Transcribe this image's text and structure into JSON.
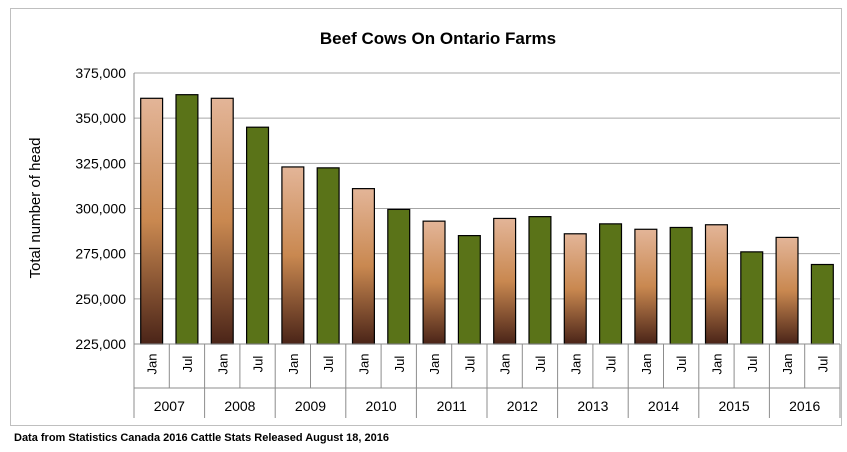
{
  "chart_data": {
    "type": "bar",
    "title": "Beef Cows On Ontario Farms",
    "ylabel": "Total number of head",
    "xlabel": "",
    "ylim": [
      225000,
      375000
    ],
    "y_ticks": [
      225000,
      250000,
      275000,
      300000,
      325000,
      350000,
      375000
    ],
    "y_tick_labels": [
      "225,000",
      "250,000",
      "275,000",
      "300,000",
      "325,000",
      "350,000",
      "375,000"
    ],
    "grid": true,
    "legend": "none",
    "categories": [
      {
        "year": "2007",
        "month": "Jan"
      },
      {
        "year": "2007",
        "month": "Jul"
      },
      {
        "year": "2008",
        "month": "Jan"
      },
      {
        "year": "2008",
        "month": "Jul"
      },
      {
        "year": "2009",
        "month": "Jan"
      },
      {
        "year": "2009",
        "month": "Jul"
      },
      {
        "year": "2010",
        "month": "Jan"
      },
      {
        "year": "2010",
        "month": "Jul"
      },
      {
        "year": "2011",
        "month": "Jan"
      },
      {
        "year": "2011",
        "month": "Jul"
      },
      {
        "year": "2012",
        "month": "Jan"
      },
      {
        "year": "2012",
        "month": "Jul"
      },
      {
        "year": "2013",
        "month": "Jan"
      },
      {
        "year": "2013",
        "month": "Jul"
      },
      {
        "year": "2014",
        "month": "Jan"
      },
      {
        "year": "2014",
        "month": "Jul"
      },
      {
        "year": "2015",
        "month": "Jan"
      },
      {
        "year": "2015",
        "month": "Jul"
      },
      {
        "year": "2016",
        "month": "Jan"
      },
      {
        "year": "2016",
        "month": "Jul"
      }
    ],
    "years": [
      "2007",
      "2008",
      "2009",
      "2010",
      "2011",
      "2012",
      "2013",
      "2014",
      "2015",
      "2016"
    ],
    "values": [
      361000,
      363000,
      361000,
      345000,
      323000,
      322500,
      311000,
      299500,
      293000,
      285000,
      294500,
      295500,
      286000,
      291500,
      288500,
      289500,
      291000,
      276000,
      284000,
      269000
    ],
    "colors": {
      "Jan": [
        "#e3b598",
        "#c98850",
        "#4a2418"
      ],
      "Jul": "#5a7318",
      "grid": "#a6a6a6",
      "axis": "#8c8c8c"
    }
  },
  "source_note": "Data from Statistics Canada 2016 Cattle Stats  Released August 18, 2016"
}
